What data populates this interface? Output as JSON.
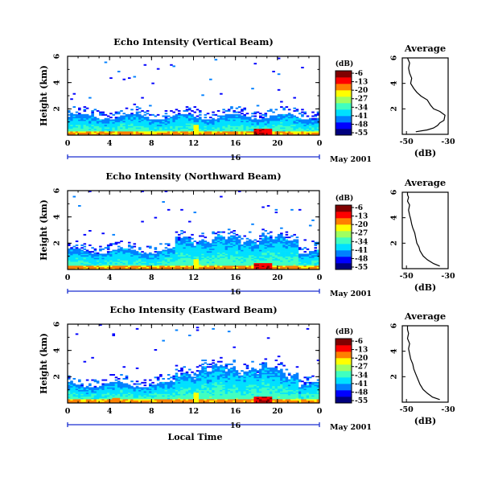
{
  "chart_data": [
    {
      "type": "heatmap",
      "title": "Echo Intensity (Vertical Beam)",
      "ylabel": "Height (km)",
      "x_ticks": [
        "0",
        "4",
        "8",
        "12",
        "16",
        "20",
        "0"
      ],
      "y_ticks": [
        "2",
        "4",
        "6"
      ],
      "xlim": [
        0,
        24
      ],
      "ylim": [
        0,
        6
      ],
      "date_day": "16",
      "date_label": "May 2001",
      "colorbar": {
        "title": "(dB)",
        "ticks": [
          "-6",
          "-13",
          "-20",
          "-27",
          "-34",
          "-41",
          "-48",
          "-55"
        ],
        "range": [
          -58,
          -4
        ]
      },
      "average": {
        "title": "Average",
        "xlabel": "(dB)",
        "x_ticks": [
          "-50",
          "-30"
        ],
        "xlim": [
          -52,
          -30
        ],
        "y_ticks": [
          "2",
          "4",
          "6"
        ],
        "ylim": [
          0,
          6
        ],
        "x": [
          -45.5,
          -40,
          -37,
          -35,
          -34,
          -32,
          -31.5,
          -34,
          -37,
          -38.5,
          -40,
          -43,
          -45,
          -46.5,
          -48,
          -47.5,
          -48.5,
          -49,
          -48.5,
          -49.5
        ],
        "y": [
          0.2,
          0.35,
          0.5,
          0.7,
          0.9,
          1.1,
          1.5,
          1.8,
          2.0,
          2.3,
          2.7,
          3.0,
          3.3,
          3.6,
          4.0,
          4.4,
          4.8,
          5.2,
          5.6,
          6.0
        ]
      }
    },
    {
      "type": "heatmap",
      "title": "Echo Intensity (Northward Beam)",
      "ylabel": "Height (km)",
      "x_ticks": [
        "0",
        "4",
        "8",
        "12",
        "16",
        "20",
        "0"
      ],
      "y_ticks": [
        "2",
        "4",
        "6"
      ],
      "xlim": [
        0,
        24
      ],
      "ylim": [
        0,
        6
      ],
      "date_day": "16",
      "date_label": "May 2001",
      "colorbar": {
        "title": "(dB)",
        "ticks": [
          "-6",
          "-13",
          "-20",
          "-27",
          "-34",
          "-41",
          "-48",
          "-55"
        ],
        "range": [
          -58,
          -4
        ]
      },
      "average": {
        "title": "Average",
        "xlabel": "(dB)",
        "x_ticks": [
          "-50",
          "-30"
        ],
        "xlim": [
          -52,
          -30
        ],
        "y_ticks": [
          "2",
          "4",
          "6"
        ],
        "ylim": [
          0,
          6
        ],
        "x": [
          -34,
          -37,
          -40,
          -42,
          -43.5,
          -44,
          -45,
          -45.5,
          -46,
          -47,
          -47.5,
          -48,
          -48.5,
          -49,
          -48.5,
          -49.5,
          -49,
          -49.5,
          -49.5
        ],
        "y": [
          0.2,
          0.4,
          0.7,
          1.0,
          1.4,
          1.7,
          2.0,
          2.4,
          2.8,
          3.2,
          3.5,
          3.9,
          4.2,
          4.6,
          5.0,
          5.3,
          5.6,
          5.8,
          6.0
        ]
      }
    },
    {
      "type": "heatmap",
      "title": "Echo Intensity (Eastward Beam)",
      "ylabel": "Height (km)",
      "x_ticks": [
        "0",
        "4",
        "8",
        "12",
        "16",
        "20",
        "0"
      ],
      "y_ticks": [
        "2",
        "4",
        "6"
      ],
      "xlim": [
        0,
        24
      ],
      "ylim": [
        0,
        6
      ],
      "date_day": "16",
      "date_label": "May 2001",
      "xlabel": "Local Time",
      "colorbar": {
        "title": "(dB)",
        "ticks": [
          "-6",
          "-13",
          "-20",
          "-27",
          "-34",
          "-41",
          "-48",
          "-55"
        ],
        "range": [
          -58,
          -4
        ]
      },
      "average": {
        "title": "Average",
        "xlabel": "(dB)",
        "x_ticks": [
          "-50",
          "-30"
        ],
        "xlim": [
          -52,
          -30
        ],
        "y_ticks": [
          "2",
          "4",
          "6"
        ],
        "ylim": [
          0,
          6
        ],
        "x": [
          -34,
          -37.5,
          -40,
          -42,
          -43.5,
          -44.5,
          -45.5,
          -46.5,
          -47,
          -48,
          -48.5,
          -49,
          -48.5,
          -49.5,
          -49,
          -49.5,
          -49.5
        ],
        "y": [
          0.2,
          0.4,
          0.7,
          1.0,
          1.4,
          1.8,
          2.2,
          2.6,
          3.0,
          3.4,
          3.8,
          4.2,
          4.6,
          5.0,
          5.4,
          5.7,
          6.0
        ]
      }
    }
  ],
  "colors": {
    "axis": "#000000",
    "dateline": "#1a2fd0",
    "profile": "#000000"
  },
  "colormap": [
    "#00007f",
    "#0000ff",
    "#0080ff",
    "#00e0ff",
    "#40ffc0",
    "#a0ff60",
    "#ffff00",
    "#ff8000",
    "#ff0000",
    "#800000"
  ]
}
